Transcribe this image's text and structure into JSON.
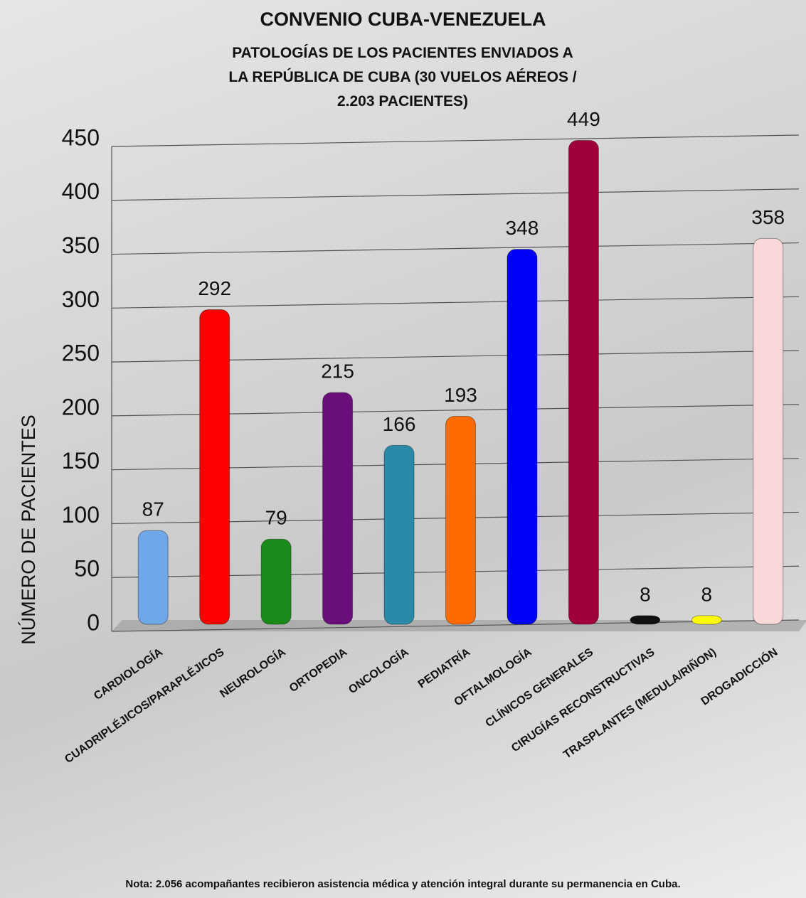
{
  "chart_data": {
    "type": "bar",
    "title": "CONVENIO CUBA-VENEZUELA",
    "subtitle": "PATOLOGÍAS DE LOS PACIENTES ENVIADOS A LA REPÚBLICA DE CUBA (30 VUELOS AÉREOS / 2.203 PACIENTES)",
    "y_label": "NÚMERO DE PACIENTES",
    "categories": [
      "CARDIOLOGÍA",
      "CUADRIPLÉJICOS/PARAPLÉJICOS",
      "NEUROLOGÍA",
      "ORTOPEDIA",
      "ONCOLOGÍA",
      "PEDIATRÍA",
      "OFTALMOLOGÍA",
      "CLÍNICOS GENERALES",
      "CIRUGÍAS RECONSTRUCTIVAS",
      "TRASPLANTES (MEDULA/RIÑON)",
      "DROGADICCIÓN"
    ],
    "values": [
      87,
      292,
      79,
      215,
      166,
      193,
      348,
      449,
      8,
      8,
      358
    ],
    "colors": [
      "#6fa8e8",
      "#ff0000",
      "#1a8a1a",
      "#6a0f7a",
      "#2a8aa8",
      "#ff6a00",
      "#0000ff",
      "#a0003a",
      "#111111",
      "#ffff00",
      "#f8d8d8"
    ],
    "ylim": [
      0,
      450
    ],
    "yticks": [
      0,
      50,
      100,
      150,
      200,
      250,
      300,
      350,
      400,
      450
    ],
    "grid": true,
    "note": "Nota: 2.056 acompañantes recibieron asistencia médica y atención integral durante su permanencia en Cuba."
  }
}
